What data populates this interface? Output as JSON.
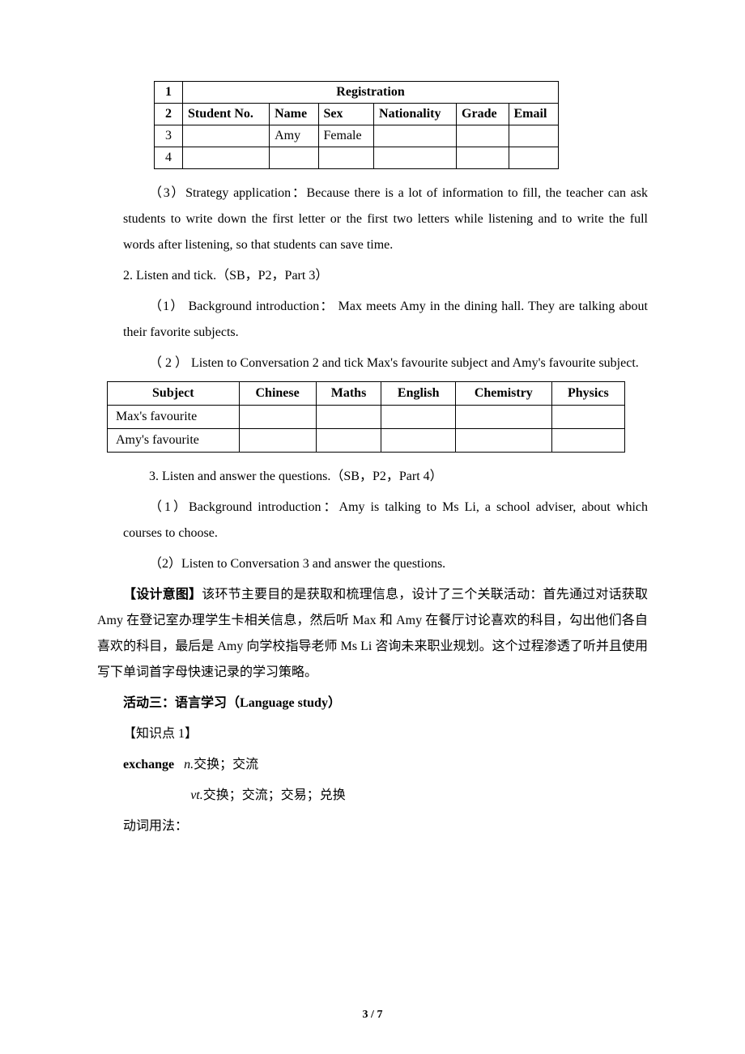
{
  "table1": {
    "titleRowIdx": "1",
    "title": "Registration",
    "headerRowIdx": "2",
    "headers": [
      "Student No.",
      "Name",
      "Sex",
      "Nationality",
      "Grade",
      "Email"
    ],
    "dataRow1Idx": "3",
    "dataRow1": [
      "",
      "Amy",
      "Female",
      "",
      "",
      ""
    ],
    "dataRow2Idx": "4",
    "dataRow2": [
      "",
      "",
      "",
      "",
      "",
      ""
    ],
    "colWidths": [
      "22px",
      "110px",
      "60px",
      "70px",
      "100px",
      "60px",
      "60px"
    ]
  },
  "para_strategy": "（3）Strategy application：Because there is a lot of information to fill, the teacher can ask students to write down the first letter or the first two letters while listening and to write the full words after listening, so that students can save time.",
  "para_listen_tick": "2. Listen and tick.（SB，P2，Part 3）",
  "para_bg1": "（1） Background introduction： Max meets Amy in the dining hall. They are talking about their favorite subjects.",
  "para_conv2": "（ 2 ） Listen to Conversation 2 and tick Max's favourite subject and Amy's favourite subject.",
  "table2": {
    "headers": [
      "Subject",
      "Chinese",
      "Maths",
      "English",
      "Chemistry",
      "Physics"
    ],
    "row1Label": "Max's favourite",
    "row2Label": "Amy's favourite"
  },
  "para_listen_answer": "3. Listen and answer the questions.（SB，P2，Part 4）",
  "para_bg2": "（1）Background introduction：Amy is talking to Ms Li, a school adviser, about which courses to choose.",
  "para_conv3": "（2）Listen to Conversation 3 and answer the questions.",
  "design_label": "【设计意图】",
  "design_text": "该环节主要目的是获取和梳理信息，设计了三个关联活动：首先通过对话获取 Amy 在登记室办理学生卡相关信息，然后听 Max 和 Amy 在餐厅讨论喜欢的科目，勾出他们各自喜欢的科目，最后是 Amy 向学校指导老师 Ms Li 咨询未来职业规划。这个过程渗透了听并且使用写下单词首字母快速记录的学习策略。",
  "activity3_prefix": "活动三：语言学习（",
  "activity3_en": "Language study",
  "activity3_suffix": "）",
  "knowledge1": "【知识点 1】",
  "exchange_word": "exchange",
  "exchange_n_label": "n.",
  "exchange_n": "交换；交流",
  "exchange_vt_label": "vt.",
  "exchange_vt": "交换；交流；交易；兑换",
  "verb_usage": "动词用法：",
  "footer_page": "3",
  "footer_sep": " / ",
  "footer_total": "7"
}
